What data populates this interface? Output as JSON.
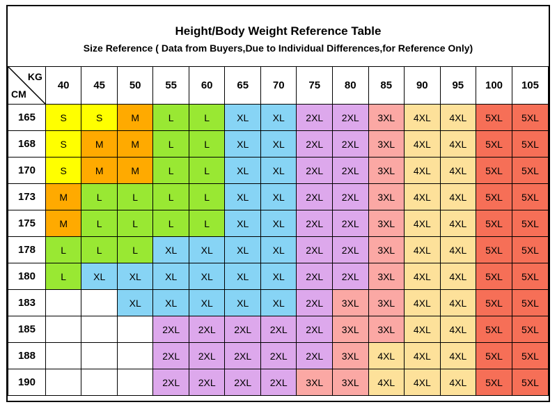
{
  "title": "Height/Body Weight Reference Table",
  "subtitle": "Size Reference ( Data from Buyers,Due to Individual Differences,for Reference Only)",
  "corner": {
    "top": "KG",
    "bottom": "CM"
  },
  "weights": [
    "40",
    "45",
    "50",
    "55",
    "60",
    "65",
    "70",
    "75",
    "80",
    "85",
    "90",
    "95",
    "100",
    "105"
  ],
  "rows": [
    {
      "height": "165",
      "sizes": [
        "S",
        "S",
        "M",
        "L",
        "L",
        "XL",
        "XL",
        "2XL",
        "2XL",
        "3XL",
        "4XL",
        "4XL",
        "5XL",
        "5XL"
      ]
    },
    {
      "height": "168",
      "sizes": [
        "S",
        "M",
        "M",
        "L",
        "L",
        "XL",
        "XL",
        "2XL",
        "2XL",
        "3XL",
        "4XL",
        "4XL",
        "5XL",
        "5XL"
      ]
    },
    {
      "height": "170",
      "sizes": [
        "S",
        "M",
        "M",
        "L",
        "L",
        "XL",
        "XL",
        "2XL",
        "2XL",
        "3XL",
        "4XL",
        "4XL",
        "5XL",
        "5XL"
      ]
    },
    {
      "height": "173",
      "sizes": [
        "M",
        "L",
        "L",
        "L",
        "L",
        "XL",
        "XL",
        "2XL",
        "2XL",
        "3XL",
        "4XL",
        "4XL",
        "5XL",
        "5XL"
      ]
    },
    {
      "height": "175",
      "sizes": [
        "M",
        "L",
        "L",
        "L",
        "L",
        "XL",
        "XL",
        "2XL",
        "2XL",
        "3XL",
        "4XL",
        "4XL",
        "5XL",
        "5XL"
      ]
    },
    {
      "height": "178",
      "sizes": [
        "L",
        "L",
        "L",
        "XL",
        "XL",
        "XL",
        "XL",
        "2XL",
        "2XL",
        "3XL",
        "4XL",
        "4XL",
        "5XL",
        "5XL"
      ]
    },
    {
      "height": "180",
      "sizes": [
        "L",
        "XL",
        "XL",
        "XL",
        "XL",
        "XL",
        "XL",
        "2XL",
        "2XL",
        "3XL",
        "4XL",
        "4XL",
        "5XL",
        "5XL"
      ]
    },
    {
      "height": "183",
      "sizes": [
        "",
        "",
        "XL",
        "XL",
        "XL",
        "XL",
        "XL",
        "2XL",
        "3XL",
        "3XL",
        "4XL",
        "4XL",
        "5XL",
        "5XL"
      ]
    },
    {
      "height": "185",
      "sizes": [
        "",
        "",
        "",
        "2XL",
        "2XL",
        "2XL",
        "2XL",
        "2XL",
        "3XL",
        "3XL",
        "4XL",
        "4XL",
        "5XL",
        "5XL"
      ]
    },
    {
      "height": "188",
      "sizes": [
        "",
        "",
        "",
        "2XL",
        "2XL",
        "2XL",
        "2XL",
        "2XL",
        "3XL",
        "4XL",
        "4XL",
        "4XL",
        "5XL",
        "5XL"
      ]
    },
    {
      "height": "190",
      "sizes": [
        "",
        "",
        "",
        "2XL",
        "2XL",
        "2XL",
        "2XL",
        "3XL",
        "3XL",
        "4XL",
        "4XL",
        "4XL",
        "5XL",
        "5XL"
      ]
    }
  ],
  "size_colors": {
    "S": "#ffff00",
    "M": "#ffaa00",
    "L": "#99e833",
    "XL": "#87d4f5",
    "2XL": "#dda8ec",
    "3XL": "#fba8a4",
    "4XL": "#fde19a",
    "5XL": "#f66f57",
    "": "#ffffff"
  }
}
